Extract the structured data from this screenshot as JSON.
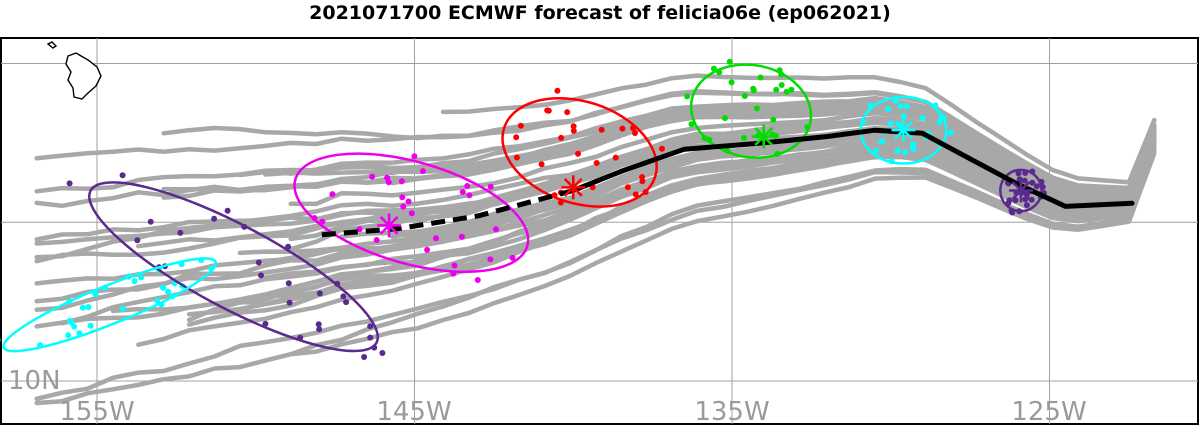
{
  "title": "2021071700 ECMWF forecast of felicia06e (ep062021)",
  "map": {
    "lon_range": [
      -158.7,
      -120.8
    ],
    "lat_range": [
      9.5,
      21.6
    ],
    "grid": true,
    "x_labels": [
      "155W",
      "145W",
      "135W",
      "125W"
    ],
    "y_labels": [
      "10N"
    ],
    "land": "Hawaii (Big Island)"
  },
  "colors": {
    "ensemble": "#a8a8a8",
    "mean_track": "#000000",
    "purple": "#5b2a8e",
    "cyan": "#00ffff",
    "green": "#00dd00",
    "red": "#ff0000",
    "magenta": "#ee00ee"
  },
  "mean_track": {
    "solid": [
      [
        -122.4,
        15.6
      ],
      [
        -124.5,
        15.5
      ],
      [
        -126.0,
        16.2
      ],
      [
        -127.5,
        17.0
      ],
      [
        -129.0,
        17.8
      ],
      [
        -130.5,
        17.9
      ],
      [
        -132.0,
        17.7
      ],
      [
        -134.0,
        17.5
      ],
      [
        -136.5,
        17.3
      ],
      [
        -138.5,
        16.6
      ],
      [
        -140.0,
        16.0
      ]
    ],
    "dashed": [
      [
        -140.0,
        16.0
      ],
      [
        -143.0,
        15.2
      ],
      [
        -145.5,
        14.8
      ],
      [
        -148.0,
        14.6
      ]
    ]
  },
  "ellipses": [
    {
      "color": "purple",
      "center": [
        -125.9,
        16.0
      ],
      "rx_lon": 0.65,
      "ry_lat": 0.65,
      "angle": 0
    },
    {
      "color": "cyan",
      "center": [
        -129.6,
        17.9
      ],
      "rx_lon": 1.35,
      "ry_lat": 1.05,
      "angle": 0
    },
    {
      "color": "green",
      "center": [
        -134.4,
        18.5
      ],
      "rx_lon": 1.9,
      "ry_lat": 1.45,
      "angle": 10
    },
    {
      "color": "red",
      "center": [
        -139.8,
        17.2
      ],
      "rx_lon": 2.5,
      "ry_lat": 1.6,
      "angle": 18
    },
    {
      "color": "magenta",
      "center": [
        -145.1,
        15.3
      ],
      "rx_lon": 3.8,
      "ry_lat": 1.6,
      "angle": 16
    },
    {
      "color": "purple",
      "center": [
        -150.7,
        13.6
      ],
      "rx_lon": 5.1,
      "ry_lat": 1.3,
      "angle": 28
    },
    {
      "color": "cyan",
      "center": [
        -154.6,
        12.4
      ],
      "rx_lon": 3.6,
      "ry_lat": 0.6,
      "angle": -22
    }
  ],
  "mean_positions": [
    {
      "color": "purple",
      "pos": [
        -125.9,
        16.0
      ]
    },
    {
      "color": "cyan",
      "pos": [
        -129.6,
        17.9
      ]
    },
    {
      "color": "green",
      "pos": [
        -134.0,
        17.7
      ]
    },
    {
      "color": "red",
      "pos": [
        -140.0,
        16.1
      ]
    },
    {
      "color": "magenta",
      "pos": [
        -145.8,
        14.9
      ]
    }
  ]
}
